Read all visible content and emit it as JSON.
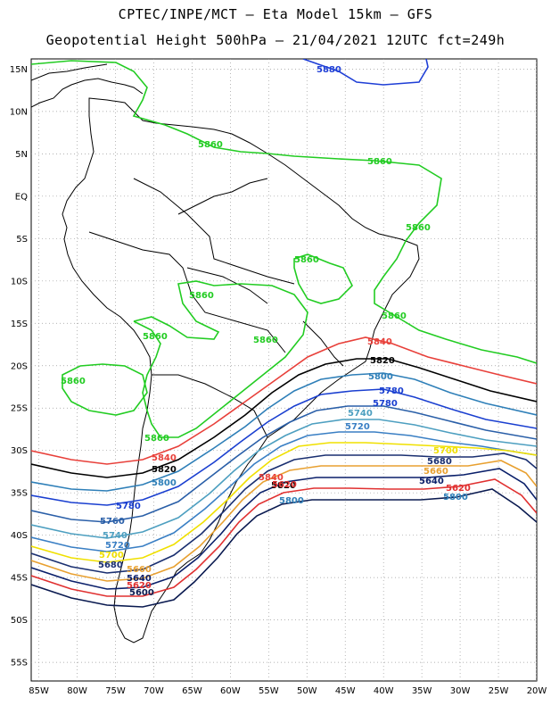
{
  "header": {
    "line1": "CPTEC/INPE/MCT –  Eta Model 15km – GFS",
    "line2": "Geopotential Height 500hPa – 21/04/2021 12UTC fct=249h"
  },
  "axes": {
    "lat_labels": [
      "15N",
      "10N",
      "5N",
      "EQ",
      "5S",
      "10S",
      "15S",
      "20S",
      "25S",
      "30S",
      "35S",
      "40S",
      "45S",
      "50S",
      "55S"
    ],
    "lon_labels": [
      "85W",
      "80W",
      "75W",
      "70W",
      "65W",
      "60W",
      "55W",
      "50W",
      "45W",
      "40W",
      "35W",
      "30W",
      "25W",
      "20W"
    ]
  },
  "colors": {
    "c5880": "#1f3fd6",
    "c5860": "#22cc22",
    "c5840": "#e8403a",
    "c5820": "#000000",
    "c5800": "#2e7fb8",
    "c5780": "#1a3fd0",
    "c5760": "#2a5fa8",
    "c5740": "#4d9fc0",
    "c5720": "#3a7fc4",
    "c5700": "#f0e000",
    "c5680": "#1a2f70",
    "c5660": "#e8a030",
    "c5640": "#0a1f6a",
    "c5620": "#e03030",
    "c5600": "#0a1a50"
  },
  "contour_labels": {
    "v5880": "5880",
    "v5860": "5860",
    "v5840": "5840",
    "v5820": "5820",
    "v5800": "5800",
    "v5780": "5780",
    "v5760": "5760",
    "v5740": "5740",
    "v5720": "5720",
    "v5700": "5700",
    "v5680": "5680",
    "v5660": "5660",
    "v5640": "5640",
    "v5620": "5620",
    "v5600": "5600"
  }
}
